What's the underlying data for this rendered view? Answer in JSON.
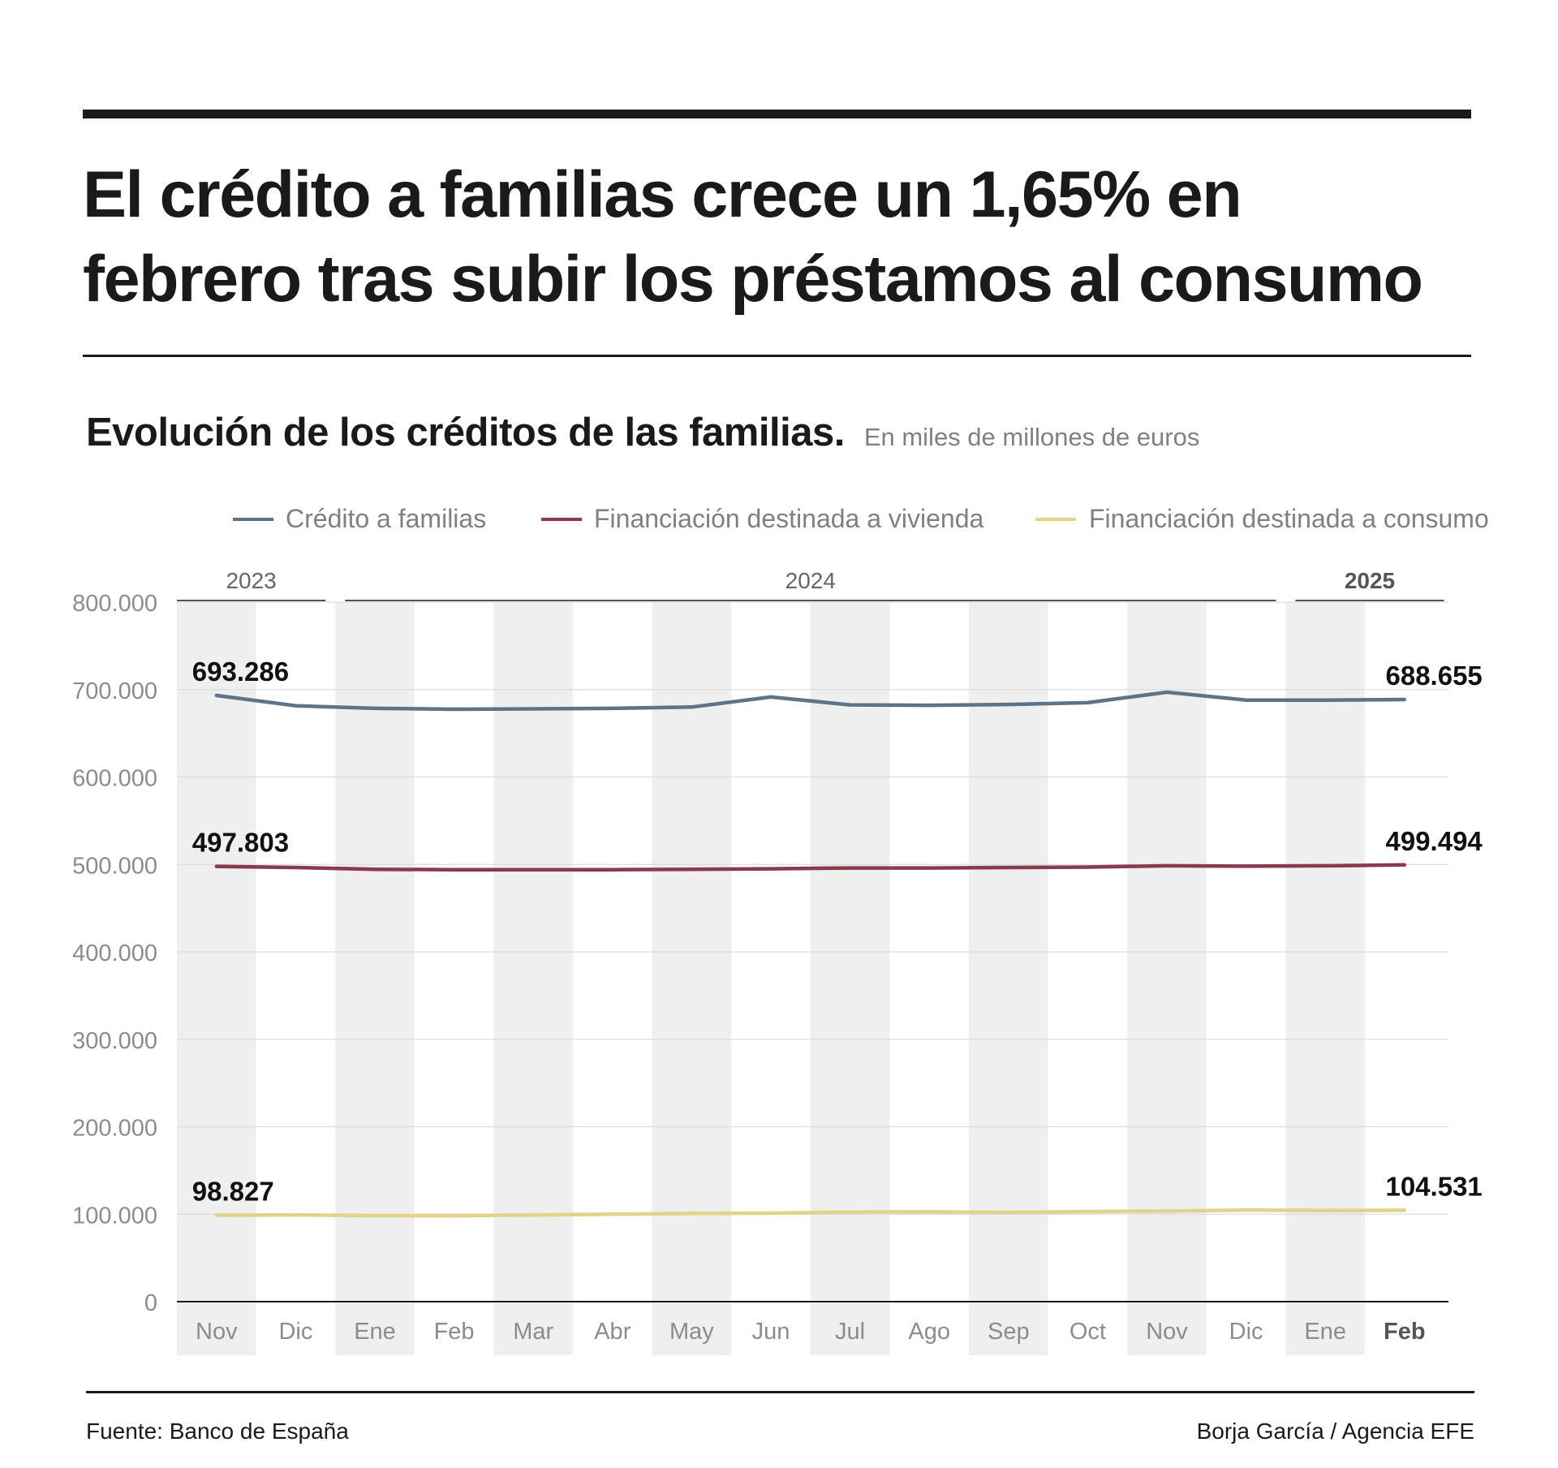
{
  "headline": {
    "line1": "El crédito a familias crece un 1,65% en",
    "line2": "febrero tras subir los préstamos al consumo"
  },
  "subtitle": {
    "main": "Evolución de los créditos de las familias.",
    "unit": "En miles de millones de euros"
  },
  "footer": {
    "source": "Fuente: Banco de España",
    "credit": "Borja García / Agencia EFE"
  },
  "chart_data": {
    "type": "line",
    "title": "Evolución de los créditos de las familias.",
    "subtitle": "En miles de millones de euros",
    "categories": [
      "Nov",
      "Dic",
      "Ene",
      "Feb",
      "Mar",
      "Abr",
      "May",
      "Jun",
      "Jul",
      "Ago",
      "Sep",
      "Oct",
      "Nov",
      "Dic",
      "Ene",
      "Feb"
    ],
    "years": [
      {
        "label": "2023",
        "from": 0,
        "to": 1,
        "bold": false
      },
      {
        "label": "2024",
        "from": 2,
        "to": 13,
        "bold": false
      },
      {
        "label": "2025",
        "from": 14,
        "to": 15,
        "bold": true
      }
    ],
    "bold_category_index": 15,
    "ylim": [
      0,
      800000
    ],
    "yticks": [
      {
        "value": 0,
        "label": "0"
      },
      {
        "value": 100000,
        "label": "100.000"
      },
      {
        "value": 200000,
        "label": "200.000"
      },
      {
        "value": 300000,
        "label": "300.000"
      },
      {
        "value": 400000,
        "label": "400.000"
      },
      {
        "value": 500000,
        "label": "500.000"
      },
      {
        "value": 600000,
        "label": "600.000"
      },
      {
        "value": 700000,
        "label": "700.000"
      },
      {
        "value": 800000,
        "label": "800.000"
      }
    ],
    "grid": true,
    "legend_position": "top",
    "series": [
      {
        "name": "Crédito a familias",
        "color": "#5e7385",
        "values": [
          693286,
          681500,
          678500,
          677500,
          678000,
          678500,
          680000,
          691500,
          682500,
          682000,
          683000,
          685000,
          697000,
          688000,
          688000,
          688655
        ],
        "start_label": "693.286",
        "end_label": "688.655"
      },
      {
        "name": "Financiación destinada a vivienda",
        "color": "#8b3a4d",
        "values": [
          497803,
          496500,
          494500,
          494000,
          494000,
          494000,
          494500,
          495000,
          496000,
          496000,
          496500,
          497000,
          498500,
          498000,
          498500,
          499494
        ],
        "start_label": "497.803",
        "end_label": "499.494"
      },
      {
        "name": "Financiación destinada a consumo",
        "color": "#e0d48a",
        "values": [
          98827,
          99200,
          98400,
          98200,
          99100,
          100000,
          101000,
          101200,
          102500,
          102800,
          102000,
          103000,
          103600,
          104800,
          104300,
          104531
        ],
        "start_label": "98.827",
        "end_label": "104.531"
      }
    ]
  }
}
